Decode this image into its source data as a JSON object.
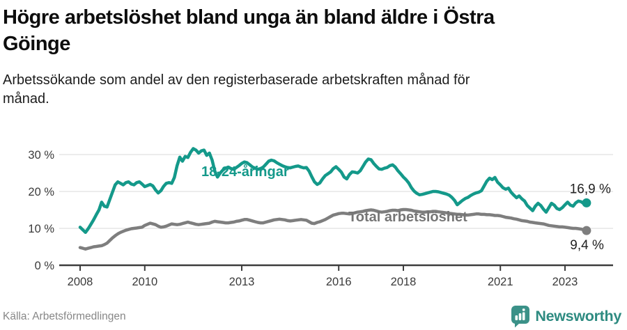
{
  "header": {
    "title_lines": [
      "Högre arbetslöshet bland unga än bland äldre i Östra",
      "Göinge"
    ],
    "subtitle_lines": [
      "Arbetssökande som andel av den registerbaserade arbetskraften månad för",
      "månad."
    ]
  },
  "footer": {
    "source": "Källa: Arbetsförmedlingen",
    "brand": "Newsworthy"
  },
  "colors": {
    "young_series": "#14998a",
    "total_series": "#7e7e7e",
    "total_label": "#757575",
    "gridline": "#d8d8d8",
    "axis": "#3d3d3d",
    "logo_teal": "#3b9188"
  },
  "chart_data": {
    "type": "line",
    "title": "Högre arbetslöshet bland unga än bland äldre i Östra Göinge",
    "subtitle": "Arbetssökande som andel av den registerbaserade arbetskraften månad för månad.",
    "unit": "%",
    "x_start_year": 2008.0,
    "x_interval_years": 0.08333,
    "xlim": [
      2007.35,
      2024.5
    ],
    "ylim": [
      0,
      32
    ],
    "grid": "horizontal",
    "y_ticks": [
      {
        "label": "0 %",
        "value": 0
      },
      {
        "label": "10 %",
        "value": 10
      },
      {
        "label": "20 %",
        "value": 20
      },
      {
        "label": "30 %",
        "value": 30
      }
    ],
    "x_ticks": [
      {
        "label": "2008",
        "value": 2008
      },
      {
        "label": "2010",
        "value": 2010
      },
      {
        "label": "2013",
        "value": 2013
      },
      {
        "label": "2016",
        "value": 2016
      },
      {
        "label": "2018",
        "value": 2018
      },
      {
        "label": "2021",
        "value": 2021
      },
      {
        "label": "2023",
        "value": 2023
      }
    ],
    "series": [
      {
        "name": "18-24-åringar",
        "color": "#14998a",
        "label_color": "#14998a",
        "end_label": "16,9 %",
        "values": [
          10.3,
          9.6,
          8.9,
          9.9,
          11.1,
          12.3,
          13.7,
          15.0,
          17.1,
          16.0,
          15.8,
          17.8,
          19.8,
          21.8,
          22.6,
          22.2,
          21.8,
          22.4,
          22.6,
          22.0,
          21.8,
          22.4,
          22.6,
          22.0,
          21.3,
          21.6,
          21.9,
          21.5,
          20.4,
          19.6,
          20.2,
          21.4,
          22.2,
          22.4,
          22.2,
          23.8,
          27.0,
          29.3,
          28.2,
          29.5,
          29.2,
          30.6,
          31.6,
          31.2,
          30.4,
          31.0,
          31.2,
          29.8,
          30.4,
          28.5,
          25.5,
          23.9,
          25.0,
          25.8,
          26.3,
          26.6,
          26.2,
          26.0,
          26.5,
          27.0,
          27.6,
          28.0,
          27.8,
          27.2,
          26.6,
          26.3,
          26.0,
          26.2,
          26.6,
          27.4,
          28.2,
          28.5,
          28.3,
          27.8,
          27.4,
          27.0,
          26.7,
          26.5,
          26.4,
          26.6,
          26.8,
          26.9,
          26.6,
          26.4,
          26.5,
          25.5,
          24.0,
          22.6,
          21.9,
          22.3,
          23.4,
          24.3,
          24.8,
          25.3,
          26.2,
          26.7,
          26.0,
          25.2,
          23.9,
          23.4,
          24.6,
          25.3,
          25.2,
          25.0,
          25.6,
          26.8,
          28.0,
          28.8,
          28.6,
          27.6,
          26.8,
          26.1,
          26.0,
          26.3,
          26.5,
          27.0,
          27.2,
          26.6,
          25.6,
          24.8,
          23.9,
          23.2,
          22.3,
          21.0,
          20.1,
          19.5,
          19.1,
          19.2,
          19.4,
          19.6,
          19.8,
          20.0,
          20.0,
          19.9,
          19.7,
          19.5,
          19.3,
          19.0,
          18.4,
          17.6,
          16.4,
          17.0,
          17.6,
          18.1,
          18.4,
          18.9,
          19.3,
          19.6,
          19.8,
          20.2,
          21.5,
          22.8,
          23.6,
          23.2,
          23.8,
          22.5,
          21.8,
          21.0,
          20.6,
          20.9,
          19.8,
          19.0,
          18.3,
          18.8,
          18.0,
          17.4,
          16.2,
          15.5,
          14.8,
          16.0,
          16.8,
          16.2,
          15.2,
          14.4,
          15.6,
          16.8,
          16.3,
          15.4,
          15.1,
          15.6,
          16.4,
          17.1,
          16.3,
          16.0,
          16.9,
          17.4,
          17.2,
          16.7,
          16.9
        ]
      },
      {
        "name": "Total arbetslöshet",
        "color": "#7e7e7e",
        "label_color": "#757575",
        "end_label": "9,4 %",
        "values": [
          4.8,
          4.6,
          4.4,
          4.6,
          4.8,
          5.0,
          5.1,
          5.2,
          5.3,
          5.6,
          6.0,
          6.7,
          7.4,
          8.0,
          8.5,
          8.9,
          9.2,
          9.5,
          9.7,
          9.9,
          10.0,
          10.1,
          10.2,
          10.3,
          10.8,
          11.1,
          11.4,
          11.2,
          11.0,
          10.6,
          10.3,
          10.4,
          10.6,
          10.9,
          11.2,
          11.1,
          11.0,
          11.1,
          11.3,
          11.5,
          11.7,
          11.5,
          11.3,
          11.1,
          11.0,
          11.1,
          11.2,
          11.3,
          11.4,
          11.7,
          11.9,
          11.8,
          11.7,
          11.6,
          11.5,
          11.5,
          11.6,
          11.7,
          11.9,
          12.0,
          12.2,
          12.4,
          12.4,
          12.2,
          12.0,
          11.8,
          11.6,
          11.5,
          11.5,
          11.7,
          11.9,
          12.1,
          12.3,
          12.4,
          12.5,
          12.4,
          12.3,
          12.1,
          12.0,
          12.1,
          12.2,
          12.3,
          12.4,
          12.3,
          12.2,
          11.8,
          11.4,
          11.3,
          11.6,
          11.8,
          12.1,
          12.4,
          12.8,
          13.2,
          13.6,
          13.8,
          14.0,
          14.1,
          14.1,
          14.0,
          13.9,
          14.0,
          14.2,
          14.4,
          14.5,
          14.6,
          14.8,
          14.9,
          15.0,
          14.9,
          14.7,
          14.5,
          14.4,
          14.5,
          14.6,
          14.8,
          14.9,
          14.9,
          14.8,
          15.0,
          15.1,
          15.1,
          15.0,
          14.9,
          14.7,
          14.6,
          14.5,
          14.4,
          14.4,
          14.5,
          14.5,
          14.6,
          14.6,
          14.5,
          14.4,
          14.3,
          14.2,
          14.1,
          14.0,
          13.9,
          13.8,
          13.8,
          13.7,
          13.6,
          13.6,
          13.7,
          13.8,
          13.9,
          13.9,
          13.8,
          13.8,
          13.7,
          13.7,
          13.6,
          13.5,
          13.5,
          13.4,
          13.2,
          13.0,
          12.9,
          12.8,
          12.6,
          12.5,
          12.3,
          12.1,
          12.0,
          11.9,
          11.7,
          11.6,
          11.5,
          11.4,
          11.3,
          11.2,
          11.0,
          10.8,
          10.7,
          10.6,
          10.5,
          10.4,
          10.4,
          10.3,
          10.2,
          10.1,
          10.0,
          10.0,
          9.9,
          9.8,
          9.6,
          9.4
        ]
      }
    ],
    "legend_position": "inline-labels"
  }
}
